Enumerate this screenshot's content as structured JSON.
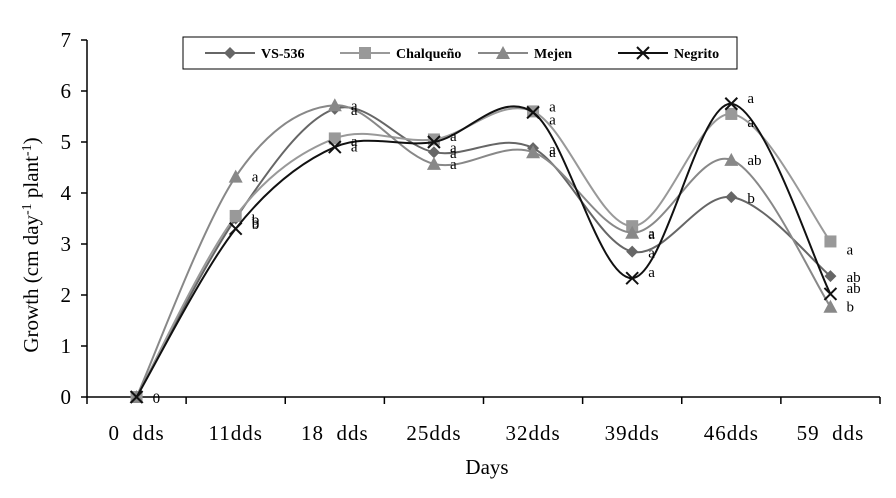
{
  "chart_data": {
    "type": "line",
    "title": "",
    "xlabel": "Days",
    "ylabel_parts": [
      "Growth (cm day",
      "-1",
      " plant",
      "-1",
      ")"
    ],
    "ylim": [
      0,
      7
    ],
    "yticks": [
      "0",
      "1",
      "2",
      "3",
      "4",
      "5",
      "6",
      "7"
    ],
    "categories": [
      "0  dds",
      "11dds",
      "18  dds",
      "25dds",
      "32dds",
      "39dds",
      "46dds",
      "59  dds"
    ],
    "legend_position": "top-center",
    "series": [
      {
        "name": "VS-536",
        "color": "#666666",
        "marker": "diamond",
        "values": [
          0,
          3.5,
          5.65,
          4.8,
          4.88,
          2.85,
          3.92,
          2.37
        ],
        "annotations": [
          "0",
          "b",
          "a",
          "a",
          "a",
          "a",
          "b",
          "ab"
        ]
      },
      {
        "name": "Chalqueño",
        "color": "#999999",
        "marker": "square",
        "values": [
          0,
          3.55,
          5.07,
          5.05,
          5.6,
          3.35,
          5.55,
          3.05
        ],
        "annotations": [
          "",
          "b",
          "a",
          "a",
          "a",
          "a",
          "a",
          "a"
        ]
      },
      {
        "name": "Mejen",
        "color": "#888888",
        "marker": "triangle",
        "values": [
          0,
          4.32,
          5.72,
          4.57,
          4.8,
          3.22,
          4.65,
          1.77
        ],
        "annotations": [
          "",
          "a",
          "a",
          "a",
          "a",
          "a",
          "ab",
          "b"
        ]
      },
      {
        "name": "Negrito",
        "color": "#111111",
        "marker": "x",
        "values": [
          0,
          3.3,
          4.9,
          5.0,
          5.58,
          2.33,
          5.75,
          2.02
        ],
        "annotations": [
          "",
          "b",
          "a",
          "a",
          "a",
          "a",
          "a",
          "ab"
        ]
      }
    ]
  }
}
